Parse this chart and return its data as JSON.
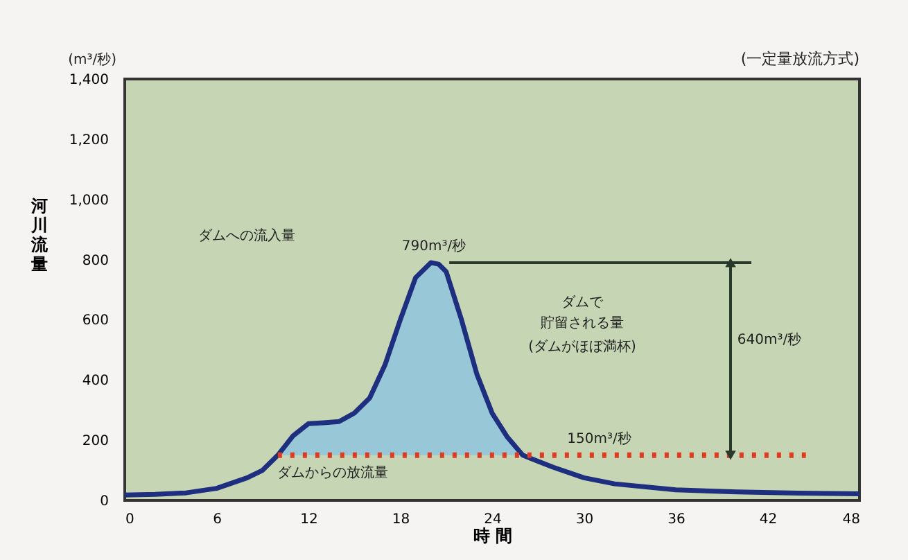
{
  "chart_data": {
    "type": "line",
    "subtitle": "(一定量放流方式)",
    "xlabel": "時 間",
    "ylabel": "河川流量",
    "xlim": [
      0,
      48
    ],
    "xticks": [
      0,
      6,
      12,
      18,
      24,
      30,
      36,
      42,
      48
    ],
    "ylim": [
      0,
      1400
    ],
    "yticks": [
      0,
      200,
      400,
      600,
      800,
      {
        "value": 1000,
        "label": "1,000"
      },
      {
        "value": 1200,
        "label": "1,200"
      },
      {
        "value": 1400,
        "label": "1,400"
      }
    ],
    "grid": false,
    "series": [
      {
        "color": "#1f2f80",
        "line_style": "solid",
        "x": [
          0,
          2,
          4,
          6,
          8,
          9,
          10,
          11,
          12,
          13,
          14,
          15,
          16,
          17,
          18,
          19,
          20,
          20.5,
          21,
          22,
          23,
          24,
          25,
          26,
          28,
          30,
          32,
          36,
          40,
          44,
          48
        ],
        "values": [
          18,
          20,
          25,
          40,
          75,
          100,
          150,
          215,
          255,
          258,
          262,
          290,
          340,
          450,
          600,
          740,
          790,
          785,
          760,
          600,
          420,
          290,
          210,
          150,
          110,
          75,
          55,
          35,
          28,
          24,
          22
        ],
        "lower": [
          null,
          null,
          null,
          null,
          null,
          null,
          150,
          150,
          150,
          150,
          150,
          150,
          150,
          150,
          150,
          150,
          150,
          150,
          150,
          150,
          150,
          150,
          150,
          150,
          null,
          null,
          null,
          null,
          null,
          null,
          null
        ],
        "upper": [
          null,
          null,
          null,
          null,
          null,
          null,
          150,
          215,
          255,
          258,
          262,
          290,
          340,
          450,
          600,
          740,
          790,
          785,
          760,
          600,
          420,
          290,
          210,
          150,
          null,
          null,
          null,
          null,
          null,
          null,
          null
        ]
      },
      {
        "color": "#e03a20",
        "line_style": "dotted",
        "x": [
          10,
          44.5
        ],
        "values": [
          150,
          150
        ]
      }
    ],
    "annotations": [
      "(m³/秒)",
      "ダムへの流入量",
      {
        "text": "790m³/秒",
        "x": 20.2,
        "y": 790
      },
      "ダムで",
      "貯留される量",
      "(ダムがほぼ満杯)",
      {
        "text": "150m³/秒",
        "x": 31,
        "y": 150
      },
      "640m³/秒",
      "ダムからの放流量"
    ]
  }
}
